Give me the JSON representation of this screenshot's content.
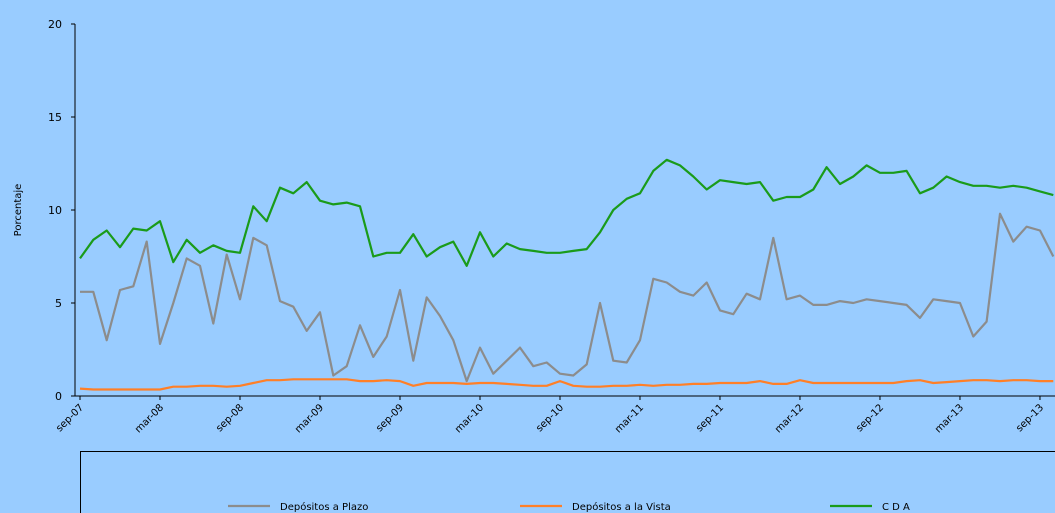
{
  "chart_data": {
    "type": "line",
    "ylabel": "Porcentaje",
    "categories": [
      "sep-07",
      null,
      null,
      null,
      null,
      null,
      "mar-08",
      null,
      null,
      null,
      null,
      null,
      "sep-08",
      null,
      null,
      null,
      null,
      null,
      "mar-09",
      null,
      null,
      null,
      null,
      null,
      "sep-09",
      null,
      null,
      null,
      null,
      null,
      "mar-10",
      null,
      null,
      null,
      null,
      null,
      "sep-10",
      null,
      null,
      null,
      null,
      null,
      "mar-11",
      null,
      null,
      null,
      null,
      null,
      "sep-11",
      null,
      null,
      null,
      null,
      null,
      "mar-12",
      null,
      null,
      null,
      null,
      null,
      "sep-12",
      null,
      null,
      null,
      null,
      null,
      "mar-13",
      null,
      null,
      null,
      null,
      null,
      "sep-13",
      null
    ],
    "series": [
      {
        "name": "Depósitos a Plazo",
        "color": "#8c8c8c",
        "values": [
          5.6,
          5.6,
          3.0,
          5.7,
          5.9,
          8.3,
          2.8,
          5.0,
          7.4,
          7.0,
          3.9,
          7.6,
          5.2,
          8.5,
          8.1,
          5.1,
          4.8,
          3.5,
          4.5,
          1.1,
          1.6,
          3.8,
          2.1,
          3.2,
          5.7,
          1.9,
          5.3,
          4.3,
          3.0,
          0.8,
          2.6,
          1.2,
          1.9,
          2.6,
          1.6,
          1.8,
          1.2,
          1.1,
          1.7,
          5.0,
          1.9,
          1.8,
          3.0,
          6.3,
          6.1,
          5.6,
          5.4,
          6.1,
          4.6,
          4.4,
          5.5,
          5.2,
          8.5,
          5.2,
          5.4,
          4.9,
          4.9,
          5.1,
          5.0,
          5.2,
          5.1,
          5.0,
          4.9,
          4.2,
          5.2,
          5.1,
          5.0,
          3.2,
          4.0,
          9.8,
          8.3,
          9.1,
          8.9,
          7.5
        ]
      },
      {
        "name": "Depósitos a la Vista",
        "color": "#ff7f27",
        "values": [
          0.4,
          0.35,
          0.35,
          0.35,
          0.35,
          0.35,
          0.35,
          0.5,
          0.5,
          0.55,
          0.55,
          0.5,
          0.55,
          0.7,
          0.85,
          0.85,
          0.9,
          0.9,
          0.9,
          0.9,
          0.9,
          0.8,
          0.8,
          0.85,
          0.8,
          0.55,
          0.7,
          0.7,
          0.7,
          0.65,
          0.7,
          0.7,
          0.65,
          0.6,
          0.55,
          0.55,
          0.8,
          0.55,
          0.5,
          0.5,
          0.55,
          0.55,
          0.6,
          0.55,
          0.6,
          0.6,
          0.65,
          0.65,
          0.7,
          0.7,
          0.7,
          0.8,
          0.65,
          0.65,
          0.85,
          0.7,
          0.7,
          0.7,
          0.7,
          0.7,
          0.7,
          0.7,
          0.8,
          0.85,
          0.7,
          0.75,
          0.8,
          0.85,
          0.85,
          0.8,
          0.85,
          0.85,
          0.8,
          0.8
        ]
      },
      {
        "name": "C D A",
        "color": "#1a9b1a",
        "values": [
          7.4,
          8.4,
          8.9,
          8.0,
          9.0,
          8.9,
          9.4,
          7.2,
          8.4,
          7.7,
          8.1,
          7.8,
          7.7,
          10.2,
          9.4,
          11.2,
          10.9,
          11.5,
          10.5,
          10.3,
          10.4,
          10.2,
          7.5,
          7.7,
          7.7,
          8.7,
          7.5,
          8.0,
          8.3,
          7.0,
          8.8,
          7.5,
          8.2,
          7.9,
          7.8,
          7.7,
          7.7,
          7.8,
          7.9,
          8.8,
          10.0,
          10.6,
          10.9,
          12.1,
          12.7,
          12.4,
          11.8,
          11.1,
          11.6,
          11.5,
          11.4,
          11.5,
          10.5,
          10.7,
          10.7,
          11.1,
          12.3,
          11.4,
          11.8,
          12.4,
          12.0,
          12.0,
          12.1,
          10.9,
          11.2,
          11.8,
          11.5,
          11.3,
          11.3,
          11.2,
          11.3,
          11.2,
          11.0,
          10.8
        ]
      }
    ],
    "ylim": [
      0,
      20
    ],
    "yticks": [
      0,
      5,
      10,
      15,
      20
    ]
  }
}
